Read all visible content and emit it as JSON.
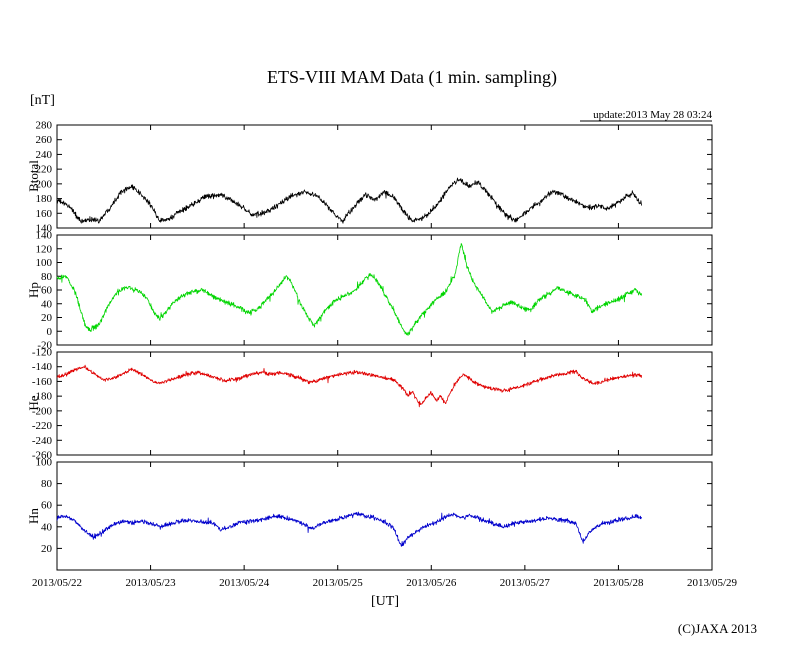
{
  "header": {
    "unit_label": "[nT]",
    "update_label": "update:2013 May 28 03:24"
  },
  "footer": {
    "copyright": "(C)JAXA 2013"
  },
  "chart_data": {
    "type": "line",
    "title": "ETS-VIII MAM Data (1 min. sampling)",
    "xlabel": "[UT]",
    "y_unit": "[nT]",
    "x_range_days": [
      0,
      7
    ],
    "x_tick_labels": [
      "2013/05/22",
      "2013/05/23",
      "2013/05/24",
      "2013/05/25",
      "2013/05/26",
      "2013/05/27",
      "2013/05/28",
      "2013/05/29"
    ],
    "panels": [
      {
        "name": "Btotal",
        "color": "#000000",
        "ylim": [
          140,
          280
        ],
        "ytick_values": [
          140,
          160,
          180,
          200,
          220,
          240,
          260,
          280
        ],
        "ytick_labels": [
          "140",
          "160",
          "180",
          "200",
          "220",
          "240",
          "260",
          "280"
        ],
        "noise": 3.5,
        "keypoints": [
          [
            0,
            178
          ],
          [
            0.15,
            168
          ],
          [
            0.25,
            148
          ],
          [
            0.35,
            152
          ],
          [
            0.45,
            150
          ],
          [
            0.55,
            165
          ],
          [
            0.7,
            192
          ],
          [
            0.8,
            196
          ],
          [
            0.9,
            185
          ],
          [
            1.0,
            172
          ],
          [
            1.05,
            160
          ],
          [
            1.1,
            150
          ],
          [
            1.2,
            152
          ],
          [
            1.3,
            162
          ],
          [
            1.45,
            172
          ],
          [
            1.6,
            183
          ],
          [
            1.75,
            185
          ],
          [
            1.9,
            175
          ],
          [
            2.0,
            166
          ],
          [
            2.1,
            157
          ],
          [
            2.2,
            160
          ],
          [
            2.35,
            170
          ],
          [
            2.5,
            183
          ],
          [
            2.65,
            190
          ],
          [
            2.8,
            182
          ],
          [
            2.9,
            168
          ],
          [
            3.0,
            155
          ],
          [
            3.05,
            148
          ],
          [
            3.1,
            158
          ],
          [
            3.2,
            172
          ],
          [
            3.3,
            186
          ],
          [
            3.4,
            178
          ],
          [
            3.5,
            190
          ],
          [
            3.6,
            182
          ],
          [
            3.7,
            163
          ],
          [
            3.8,
            150
          ],
          [
            3.9,
            152
          ],
          [
            4.0,
            163
          ],
          [
            4.1,
            178
          ],
          [
            4.2,
            196
          ],
          [
            4.3,
            207
          ],
          [
            4.4,
            196
          ],
          [
            4.5,
            202
          ],
          [
            4.6,
            188
          ],
          [
            4.7,
            172
          ],
          [
            4.8,
            157
          ],
          [
            4.9,
            150
          ],
          [
            5.0,
            160
          ],
          [
            5.1,
            170
          ],
          [
            5.2,
            180
          ],
          [
            5.3,
            190
          ],
          [
            5.4,
            186
          ],
          [
            5.5,
            178
          ],
          [
            5.6,
            172
          ],
          [
            5.7,
            167
          ],
          [
            5.8,
            170
          ],
          [
            5.9,
            166
          ],
          [
            6.0,
            174
          ],
          [
            6.1,
            184
          ],
          [
            6.15,
            188
          ],
          [
            6.25,
            172
          ]
        ]
      },
      {
        "name": "Hp",
        "color": "#00d500",
        "ylim": [
          -20,
          140
        ],
        "ytick_values": [
          -20,
          0,
          20,
          40,
          60,
          80,
          100,
          120,
          140
        ],
        "ytick_labels": [
          "-20",
          "0",
          "20",
          "40",
          "60",
          "80",
          "100",
          "120",
          "140"
        ],
        "noise": 3.5,
        "keypoints": [
          [
            0,
            76
          ],
          [
            0.1,
            80
          ],
          [
            0.2,
            55
          ],
          [
            0.3,
            8
          ],
          [
            0.35,
            2
          ],
          [
            0.45,
            10
          ],
          [
            0.55,
            38
          ],
          [
            0.65,
            58
          ],
          [
            0.75,
            64
          ],
          [
            0.85,
            60
          ],
          [
            0.95,
            50
          ],
          [
            1.05,
            25
          ],
          [
            1.1,
            18
          ],
          [
            1.2,
            35
          ],
          [
            1.3,
            48
          ],
          [
            1.45,
            58
          ],
          [
            1.55,
            60
          ],
          [
            1.65,
            52
          ],
          [
            1.75,
            45
          ],
          [
            1.85,
            40
          ],
          [
            1.95,
            34
          ],
          [
            2.05,
            26
          ],
          [
            2.15,
            32
          ],
          [
            2.25,
            48
          ],
          [
            2.35,
            62
          ],
          [
            2.45,
            80
          ],
          [
            2.5,
            72
          ],
          [
            2.6,
            40
          ],
          [
            2.7,
            18
          ],
          [
            2.75,
            8
          ],
          [
            2.85,
            28
          ],
          [
            2.95,
            42
          ],
          [
            3.05,
            50
          ],
          [
            3.15,
            56
          ],
          [
            3.25,
            70
          ],
          [
            3.35,
            84
          ],
          [
            3.45,
            68
          ],
          [
            3.5,
            55
          ],
          [
            3.6,
            30
          ],
          [
            3.7,
            2
          ],
          [
            3.75,
            -5
          ],
          [
            3.85,
            15
          ],
          [
            3.95,
            32
          ],
          [
            4.05,
            45
          ],
          [
            4.15,
            58
          ],
          [
            4.25,
            80
          ],
          [
            4.32,
            128
          ],
          [
            4.38,
            95
          ],
          [
            4.45,
            72
          ],
          [
            4.55,
            50
          ],
          [
            4.65,
            28
          ],
          [
            4.75,
            36
          ],
          [
            4.85,
            42
          ],
          [
            4.95,
            36
          ],
          [
            5.05,
            30
          ],
          [
            5.15,
            45
          ],
          [
            5.25,
            55
          ],
          [
            5.35,
            62
          ],
          [
            5.45,
            57
          ],
          [
            5.55,
            52
          ],
          [
            5.65,
            45
          ],
          [
            5.72,
            28
          ],
          [
            5.8,
            36
          ],
          [
            5.9,
            42
          ],
          [
            6.0,
            46
          ],
          [
            6.1,
            55
          ],
          [
            6.18,
            60
          ],
          [
            6.25,
            52
          ]
        ]
      },
      {
        "name": "He",
        "color": "#e00000",
        "ylim": [
          -260,
          -120
        ],
        "ytick_values": [
          -260,
          -240,
          -220,
          -200,
          -180,
          -160,
          -140,
          -120
        ],
        "ytick_labels": [
          "-260",
          "-240",
          "-220",
          "-200",
          "-180",
          "-160",
          "-140",
          "-120"
        ],
        "noise": 2.5,
        "keypoints": [
          [
            0,
            -155
          ],
          [
            0.1,
            -150
          ],
          [
            0.2,
            -144
          ],
          [
            0.3,
            -140
          ],
          [
            0.4,
            -150
          ],
          [
            0.5,
            -158
          ],
          [
            0.6,
            -156
          ],
          [
            0.7,
            -150
          ],
          [
            0.8,
            -143
          ],
          [
            0.9,
            -150
          ],
          [
            1.0,
            -158
          ],
          [
            1.1,
            -163
          ],
          [
            1.2,
            -158
          ],
          [
            1.3,
            -154
          ],
          [
            1.4,
            -150
          ],
          [
            1.5,
            -148
          ],
          [
            1.6,
            -151
          ],
          [
            1.7,
            -155
          ],
          [
            1.8,
            -159
          ],
          [
            1.9,
            -157
          ],
          [
            2.0,
            -154
          ],
          [
            2.1,
            -150
          ],
          [
            2.2,
            -148
          ],
          [
            2.3,
            -150
          ],
          [
            2.4,
            -148
          ],
          [
            2.5,
            -152
          ],
          [
            2.6,
            -156
          ],
          [
            2.7,
            -161
          ],
          [
            2.8,
            -158
          ],
          [
            2.9,
            -154
          ],
          [
            3.0,
            -151
          ],
          [
            3.1,
            -149
          ],
          [
            3.2,
            -147
          ],
          [
            3.3,
            -150
          ],
          [
            3.4,
            -152
          ],
          [
            3.5,
            -155
          ],
          [
            3.6,
            -158
          ],
          [
            3.7,
            -170
          ],
          [
            3.75,
            -180
          ],
          [
            3.8,
            -174
          ],
          [
            3.85,
            -186
          ],
          [
            3.9,
            -192
          ],
          [
            3.95,
            -180
          ],
          [
            4.0,
            -176
          ],
          [
            4.05,
            -186
          ],
          [
            4.1,
            -180
          ],
          [
            4.15,
            -190
          ],
          [
            4.2,
            -176
          ],
          [
            4.25,
            -165
          ],
          [
            4.3,
            -155
          ],
          [
            4.35,
            -150
          ],
          [
            4.45,
            -160
          ],
          [
            4.55,
            -166
          ],
          [
            4.65,
            -170
          ],
          [
            4.75,
            -172
          ],
          [
            4.85,
            -170
          ],
          [
            4.95,
            -167
          ],
          [
            5.05,
            -163
          ],
          [
            5.15,
            -158
          ],
          [
            5.25,
            -154
          ],
          [
            5.35,
            -151
          ],
          [
            5.45,
            -149
          ],
          [
            5.55,
            -146
          ],
          [
            5.6,
            -155
          ],
          [
            5.7,
            -161
          ],
          [
            5.75,
            -164
          ],
          [
            5.85,
            -159
          ],
          [
            5.95,
            -156
          ],
          [
            6.05,
            -153
          ],
          [
            6.15,
            -151
          ],
          [
            6.25,
            -152
          ]
        ]
      },
      {
        "name": "Hn",
        "color": "#0000cc",
        "ylim": [
          0,
          100
        ],
        "ytick_values": [
          0,
          20,
          40,
          60,
          80,
          100
        ],
        "ytick_labels": [
          "",
          "20",
          "40",
          "60",
          "80",
          "100"
        ],
        "noise": 2.0,
        "keypoints": [
          [
            0,
            48
          ],
          [
            0.1,
            50
          ],
          [
            0.2,
            45
          ],
          [
            0.3,
            36
          ],
          [
            0.4,
            30
          ],
          [
            0.5,
            36
          ],
          [
            0.6,
            42
          ],
          [
            0.7,
            45
          ],
          [
            0.8,
            44
          ],
          [
            0.9,
            45
          ],
          [
            1.0,
            43
          ],
          [
            1.1,
            40
          ],
          [
            1.2,
            42
          ],
          [
            1.3,
            45
          ],
          [
            1.4,
            46
          ],
          [
            1.5,
            45
          ],
          [
            1.6,
            44
          ],
          [
            1.7,
            42
          ],
          [
            1.75,
            37
          ],
          [
            1.85,
            40
          ],
          [
            1.95,
            44
          ],
          [
            2.05,
            45
          ],
          [
            2.15,
            46
          ],
          [
            2.25,
            48
          ],
          [
            2.35,
            50
          ],
          [
            2.45,
            48
          ],
          [
            2.55,
            46
          ],
          [
            2.65,
            42
          ],
          [
            2.72,
            38
          ],
          [
            2.8,
            42
          ],
          [
            2.9,
            45
          ],
          [
            3.0,
            47
          ],
          [
            3.1,
            50
          ],
          [
            3.2,
            52
          ],
          [
            3.3,
            50
          ],
          [
            3.4,
            48
          ],
          [
            3.5,
            45
          ],
          [
            3.6,
            38
          ],
          [
            3.68,
            22
          ],
          [
            3.75,
            30
          ],
          [
            3.85,
            36
          ],
          [
            3.95,
            41
          ],
          [
            4.05,
            44
          ],
          [
            4.15,
            49
          ],
          [
            4.25,
            52
          ],
          [
            4.32,
            48
          ],
          [
            4.4,
            51
          ],
          [
            4.5,
            48
          ],
          [
            4.6,
            45
          ],
          [
            4.7,
            42
          ],
          [
            4.78,
            40
          ],
          [
            4.85,
            42
          ],
          [
            4.95,
            44
          ],
          [
            5.05,
            45
          ],
          [
            5.15,
            47
          ],
          [
            5.25,
            48
          ],
          [
            5.35,
            47
          ],
          [
            5.45,
            46
          ],
          [
            5.55,
            43
          ],
          [
            5.62,
            26
          ],
          [
            5.7,
            36
          ],
          [
            5.8,
            42
          ],
          [
            5.9,
            44
          ],
          [
            6.0,
            46
          ],
          [
            6.1,
            48
          ],
          [
            6.18,
            50
          ],
          [
            6.25,
            48
          ]
        ]
      }
    ]
  }
}
